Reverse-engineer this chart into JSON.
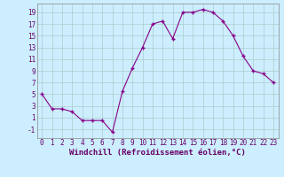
{
  "x": [
    0,
    1,
    2,
    3,
    4,
    5,
    6,
    7,
    8,
    9,
    10,
    11,
    12,
    13,
    14,
    15,
    16,
    17,
    18,
    19,
    20,
    21,
    22,
    23
  ],
  "y": [
    5,
    2.5,
    2.5,
    2,
    0.5,
    0.5,
    0.5,
    -1.5,
    5.5,
    9.5,
    13,
    17,
    17.5,
    14.5,
    19,
    19,
    19.5,
    19,
    17.5,
    15,
    11.5,
    9,
    8.5,
    7
  ],
  "line_color": "#880088",
  "marker": "+",
  "background_color": "#cceeff",
  "grid_color": "#aacccc",
  "xlabel": "Windchill (Refroidissement éolien,°C)",
  "xlabel_fontsize": 6.5,
  "yticks": [
    -1,
    1,
    3,
    5,
    7,
    9,
    11,
    13,
    15,
    17,
    19
  ],
  "xticks": [
    0,
    1,
    2,
    3,
    4,
    5,
    6,
    7,
    8,
    9,
    10,
    11,
    12,
    13,
    14,
    15,
    16,
    17,
    18,
    19,
    20,
    21,
    22,
    23
  ],
  "ylim": [
    -2.5,
    20.5
  ],
  "xlim": [
    -0.5,
    23.5
  ],
  "tick_fontsize": 5.5,
  "spine_color": "#888888"
}
